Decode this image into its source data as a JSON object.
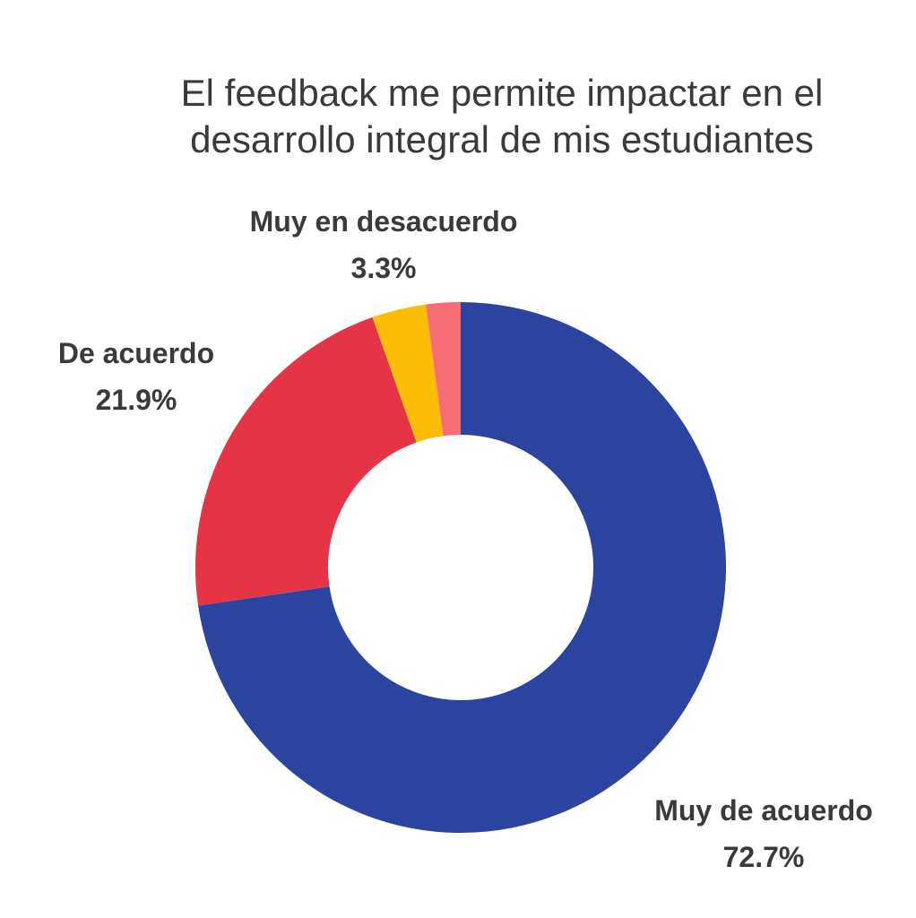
{
  "chart_data": {
    "type": "pie",
    "variant": "donut",
    "title_lines": [
      "El feedback me permite impactar en el",
      "desarrollo integral de mis estudiantes"
    ],
    "slices": [
      {
        "label": "Muy de acuerdo",
        "value": 72.7,
        "value_label": "72.7%",
        "color": "#2b44a0"
      },
      {
        "label": "De acuerdo",
        "value": 21.9,
        "value_label": "21.9%",
        "color": "#e53446"
      },
      {
        "label": "Muy en desacuerdo",
        "value": 3.3,
        "value_label": "3.3%",
        "color": "#fbbd06"
      },
      {
        "label": "",
        "value": 2.1,
        "value_label": "",
        "color": "#f76d74"
      }
    ],
    "start": "top",
    "direction": "clockwise",
    "legend": "none"
  }
}
